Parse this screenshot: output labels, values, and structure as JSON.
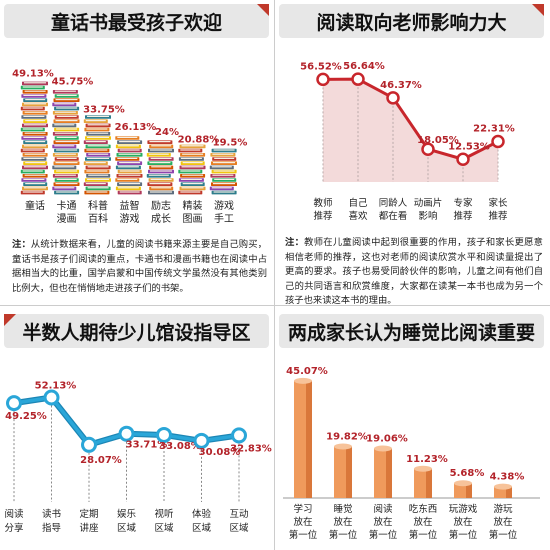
{
  "panels": {
    "books": {
      "title": "童话书最受孩子欢迎",
      "note_lead": "注：",
      "note_body": "从统计数据来看，儿童的阅读书籍来源主要是自己购买，童话书是孩子们阅读的重点，卡通书和漫画书籍也在阅读中占据相当大的比重，国学启蒙和中国传统文学虽然没有其他类别比例大，但也在悄悄地走进孩子们的书架。"
    },
    "influence": {
      "title": "阅读取向老师影响力大",
      "note_lead": "注：",
      "note_body": "教师在儿童阅读中起到很重要的作用，孩子和家长更愿意相信老师的推荐，这也对老师的阅读欣赏水平和阅读量提出了更高的要求。孩子也易受同龄伙伴的影响，儿童之间有他们自己的共同语言和欣赏维度，大家都在读某一本书也成为另一个孩子也来读这本书的理由。"
    },
    "library": {
      "title": "半数人期待少儿馆设指导区"
    },
    "sleep": {
      "title": "两成家长认为睡觉比阅读重要"
    }
  },
  "chart_data": [
    {
      "id": "books",
      "type": "bar",
      "title": "童话书最受孩子欢迎",
      "categories": [
        "童话",
        "卡通漫画",
        "科普百科",
        "益智游戏",
        "励志成长",
        "精装图画",
        "游戏手工"
      ],
      "category_lines": [
        [
          "童话"
        ],
        [
          "卡通",
          "漫画"
        ],
        [
          "科普",
          "百科"
        ],
        [
          "益智",
          "游戏"
        ],
        [
          "励志",
          "成长"
        ],
        [
          "精装",
          "图画"
        ],
        [
          "游戏",
          "手工"
        ]
      ],
      "values": [
        49.13,
        45.75,
        33.75,
        26.13,
        24,
        20.88,
        19.5
      ],
      "labels": [
        "49.13%",
        "45.75%",
        "33.75%",
        "26.13%",
        "24%",
        "20.88%",
        "19.5%"
      ],
      "ylim": [
        0,
        55
      ],
      "grid": false,
      "colors": {
        "label": "#b3232a"
      }
    },
    {
      "id": "influence",
      "type": "area",
      "title": "阅读取向老师影响力大",
      "categories": [
        "教师推荐",
        "自己喜欢",
        "同龄人都在看",
        "动画片影响",
        "专家推荐",
        "家长推荐"
      ],
      "category_lines": [
        [
          "教师",
          "推荐"
        ],
        [
          "自己",
          "喜欢"
        ],
        [
          "同龄人",
          "都在看"
        ],
        [
          "动画片",
          "影响"
        ],
        [
          "专家",
          "推荐"
        ],
        [
          "家长",
          "推荐"
        ]
      ],
      "values": [
        56.52,
        56.64,
        46.37,
        18.05,
        12.53,
        22.31
      ],
      "labels": [
        "56.52%",
        "56.64%",
        "46.37%",
        "18.05%",
        "12.53%",
        "22.31%"
      ],
      "ylim": [
        0,
        65
      ],
      "grid": false,
      "colors": {
        "line": "#c8262c",
        "fill": "#f3dada",
        "label": "#b3232a"
      }
    },
    {
      "id": "library",
      "type": "line",
      "title": "半数人期待少儿馆设指导区",
      "categories": [
        "阅读分享",
        "读书指导",
        "定期讲座",
        "娱乐区域",
        "视听区域",
        "体验区域",
        "互动区域"
      ],
      "category_lines": [
        [
          "阅读",
          "分享"
        ],
        [
          "读书",
          "指导"
        ],
        [
          "定期",
          "讲座"
        ],
        [
          "娱乐",
          "区域"
        ],
        [
          "视听",
          "区域"
        ],
        [
          "体验",
          "区域"
        ],
        [
          "互动",
          "区域"
        ]
      ],
      "values": [
        49.25,
        52.13,
        28.07,
        33.71,
        33.08,
        30.08,
        32.83
      ],
      "labels": [
        "49.25%",
        "52.13%",
        "28.07%",
        "33.71%",
        "33.08%",
        "30.08%",
        "32.83%"
      ],
      "ylim": [
        0,
        60
      ],
      "grid": false,
      "colors": {
        "line": "#2aa6d8",
        "label": "#b3232a"
      }
    },
    {
      "id": "sleep",
      "type": "bar",
      "title": "两成家长认为睡觉比阅读重要",
      "categories": [
        "学习放在第一位",
        "睡觉放在第一位",
        "阅读放在第一位",
        "吃东西放在第一位",
        "玩游戏放在第一位",
        "游玩放在第一位"
      ],
      "category_lines": [
        [
          "学习",
          "放在",
          "第一位"
        ],
        [
          "睡觉",
          "放在",
          "第一位"
        ],
        [
          "阅读",
          "放在",
          "第一位"
        ],
        [
          "吃东西",
          "放在",
          "第一位"
        ],
        [
          "玩游戏",
          "放在",
          "第一位"
        ],
        [
          "游玩",
          "放在",
          "第一位"
        ]
      ],
      "values": [
        45.07,
        19.82,
        19.06,
        11.23,
        5.68,
        4.38
      ],
      "labels": [
        "45.07%",
        "19.82%",
        "19.06%",
        "11.23%",
        "5.68%",
        "4.38%"
      ],
      "ylim": [
        0,
        50
      ],
      "grid": false,
      "colors": {
        "bar": "#ef9a5c",
        "bar_dark": "#d9773a",
        "bar_top": "#f7c39a",
        "label": "#b3232a"
      }
    }
  ]
}
